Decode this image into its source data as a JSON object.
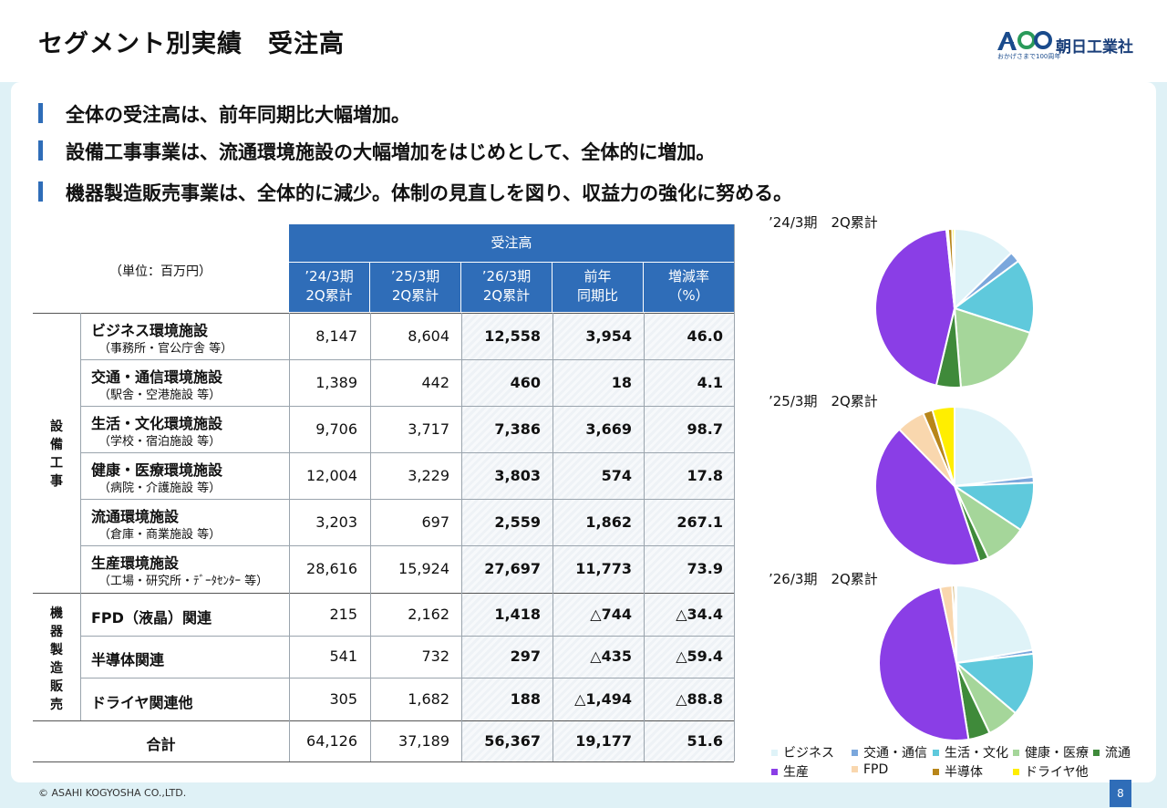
{
  "page_title": "セグメント別実績　受注高",
  "logo": {
    "mark": "A100",
    "sub": "おかげさまで100周年",
    "name": "朝日工業社"
  },
  "bullets": [
    "全体の受注高は、前年同期比大幅増加。",
    "設備工事事業は、流通環境施設の大幅増加をはじめとして、全体的に増加。",
    "機器製造販売事業は、全体的に減少。体制の見直しを図り、収益力の強化に努める。"
  ],
  "table": {
    "unit_label": "（単位：百万円）",
    "group_header": "受注高",
    "columns": [
      {
        "line1": "’24/3期",
        "line2": "2Q累計"
      },
      {
        "line1": "’25/3期",
        "line2": "2Q累計"
      },
      {
        "line1": "’26/3期",
        "line2": "2Q累計"
      },
      {
        "line1": "前年",
        "line2": "同期比"
      },
      {
        "line1": "増減率",
        "line2": "（%）"
      }
    ],
    "groups": {
      "equipment": "設備工事",
      "machinery": "機器製造販売"
    },
    "rows": [
      {
        "name": "ビジネス環境施設",
        "sub": "（事務所・官公庁舎 等）",
        "v": [
          "8,147",
          "8,604",
          "12,558",
          "3,954",
          "46.0"
        ]
      },
      {
        "name": "交通・通信環境施設",
        "sub": "（駅舎・空港施設 等）",
        "v": [
          "1,389",
          "442",
          "460",
          "18",
          "4.1"
        ]
      },
      {
        "name": "生活・文化環境施設",
        "sub": "（学校・宿泊施設 等）",
        "v": [
          "9,706",
          "3,717",
          "7,386",
          "3,669",
          "98.7"
        ]
      },
      {
        "name": "健康・医療環境施設",
        "sub": "（病院・介護施設 等）",
        "v": [
          "12,004",
          "3,229",
          "3,803",
          "574",
          "17.8"
        ]
      },
      {
        "name": "流通環境施設",
        "sub": "（倉庫・商業施設 等）",
        "v": [
          "3,203",
          "697",
          "2,559",
          "1,862",
          "267.1"
        ]
      },
      {
        "name": "生産環境施設",
        "sub": "（工場・研究所・ﾃﾞｰﾀｾﾝﾀｰ 等）",
        "v": [
          "28,616",
          "15,924",
          "27,697",
          "11,773",
          "73.9"
        ]
      },
      {
        "name": "FPD（液晶）関連",
        "sub": "",
        "v": [
          "215",
          "2,162",
          "1,418",
          "△744",
          "△34.4"
        ]
      },
      {
        "name": "半導体関連",
        "sub": "",
        "v": [
          "541",
          "732",
          "297",
          "△435",
          "△59.4"
        ]
      },
      {
        "name": "ドライヤ関連他",
        "sub": "",
        "v": [
          "305",
          "1,682",
          "188",
          "△1,494",
          "△88.8"
        ]
      }
    ],
    "total": {
      "name": "合計",
      "v": [
        "64,126",
        "37,189",
        "56,367",
        "19,177",
        "51.6"
      ]
    }
  },
  "chart_data": [
    {
      "type": "pie",
      "title": "’24/3期　2Q累計",
      "categories": [
        "ビジネス",
        "交通・通信",
        "生活・文化",
        "健康・医療",
        "流通",
        "生産",
        "FPD",
        "半導体",
        "ドライヤ他"
      ],
      "values": [
        8147,
        1389,
        9706,
        12004,
        3203,
        28616,
        215,
        541,
        305
      ]
    },
    {
      "type": "pie",
      "title": "’25/3期　2Q累計",
      "categories": [
        "ビジネス",
        "交通・通信",
        "生活・文化",
        "健康・医療",
        "流通",
        "生産",
        "FPD",
        "半導体",
        "ドライヤ他"
      ],
      "values": [
        8604,
        442,
        3717,
        3229,
        697,
        15924,
        2162,
        732,
        1682
      ]
    },
    {
      "type": "pie",
      "title": "’26/3期　2Q累計",
      "categories": [
        "ビジネス",
        "交通・通信",
        "生活・文化",
        "健康・医療",
        "流通",
        "生産",
        "FPD",
        "半導体",
        "ドライヤ他"
      ],
      "values": [
        12558,
        460,
        7386,
        3803,
        2559,
        27697,
        1418,
        297,
        188
      ]
    }
  ],
  "legend": [
    {
      "label": "ビジネス",
      "color": "#dff3f8"
    },
    {
      "label": "交通・通信",
      "color": "#7ba7dc"
    },
    {
      "label": "生活・文化",
      "color": "#5fc9dc"
    },
    {
      "label": "健康・医療",
      "color": "#a5d69a"
    },
    {
      "label": "流通",
      "color": "#3f8a3a"
    },
    {
      "label": "生産",
      "color": "#8a3ee6"
    },
    {
      "label": "FPD",
      "color": "#f9d7ae"
    },
    {
      "label": "半導体",
      "color": "#b8861a"
    },
    {
      "label": "ドライヤ他",
      "color": "#ffee00"
    }
  ],
  "footer": {
    "copyright": "© ASAHI KOGYOSHA CO.,LTD.",
    "page": "8"
  }
}
